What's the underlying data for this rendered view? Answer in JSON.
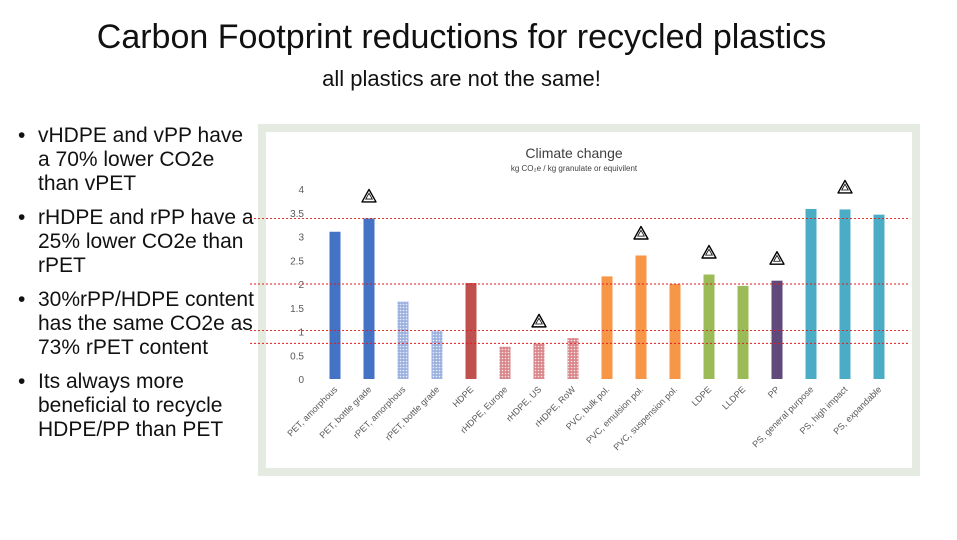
{
  "slide": {
    "title": "Carbon Footprint reductions for recycled plastics",
    "subtitle": "all plastics are not the same!"
  },
  "bullets": [
    "vHDPE and vPP have a 70% lower CO2e than vPET",
    "rHDPE and rPP have a 25% lower CO2e than rPET",
    "30%rPP/HDPE content has the same CO2e as 73% rPET content",
    "Its always more beneficial to recycle HDPE/PP than PET"
  ],
  "chart_data": {
    "type": "bar",
    "title": "Climate change",
    "subtitle": "kg CO₂e / kg granulate or equivilent",
    "ylim": [
      0,
      4
    ],
    "yticks": [
      "0",
      "0.5",
      "1",
      "1.5",
      "2",
      "2.5",
      "3",
      "3.5",
      "4"
    ],
    "categories": [
      "PET, amorphous",
      "PET, bottle grade",
      "rPET, amorphous",
      "rPET, bottle grade",
      "HDPE",
      "rHDPE, Europe",
      "rHDPE, US",
      "rHDPE, RoW",
      "PVC, bulk pol.",
      "PVC, emulsion pol.",
      "PVC, suspension pol.",
      "LDPE",
      "LLDPE",
      "PP",
      "PS, general purpose",
      "PS, high impact",
      "PS, expandable"
    ],
    "values": [
      3.1,
      3.38,
      1.63,
      1.02,
      2.02,
      0.68,
      0.75,
      0.86,
      2.16,
      2.6,
      2.0,
      2.2,
      1.96,
      2.07,
      3.58,
      3.57,
      3.46
    ],
    "colors": [
      "#4472c4",
      "#4472c4",
      "#9db1e0",
      "#9db1e0",
      "#c0504d",
      "#d9868b",
      "#d9868b",
      "#d9868b",
      "#f79646",
      "#f79646",
      "#f79646",
      "#9bbb59",
      "#9bbb59",
      "#604a7b",
      "#4bacc6",
      "#4bacc6",
      "#4bacc6"
    ],
    "patterned": [
      false,
      false,
      true,
      true,
      false,
      true,
      true,
      true,
      false,
      false,
      false,
      false,
      false,
      false,
      false,
      false,
      false
    ],
    "recycle_symbols": [
      1,
      6,
      9,
      11,
      13,
      15
    ],
    "reference_lines": [
      3.38,
      2.0,
      1.02,
      0.75
    ],
    "reference_line_color": "#e31a1c",
    "grid": false
  }
}
